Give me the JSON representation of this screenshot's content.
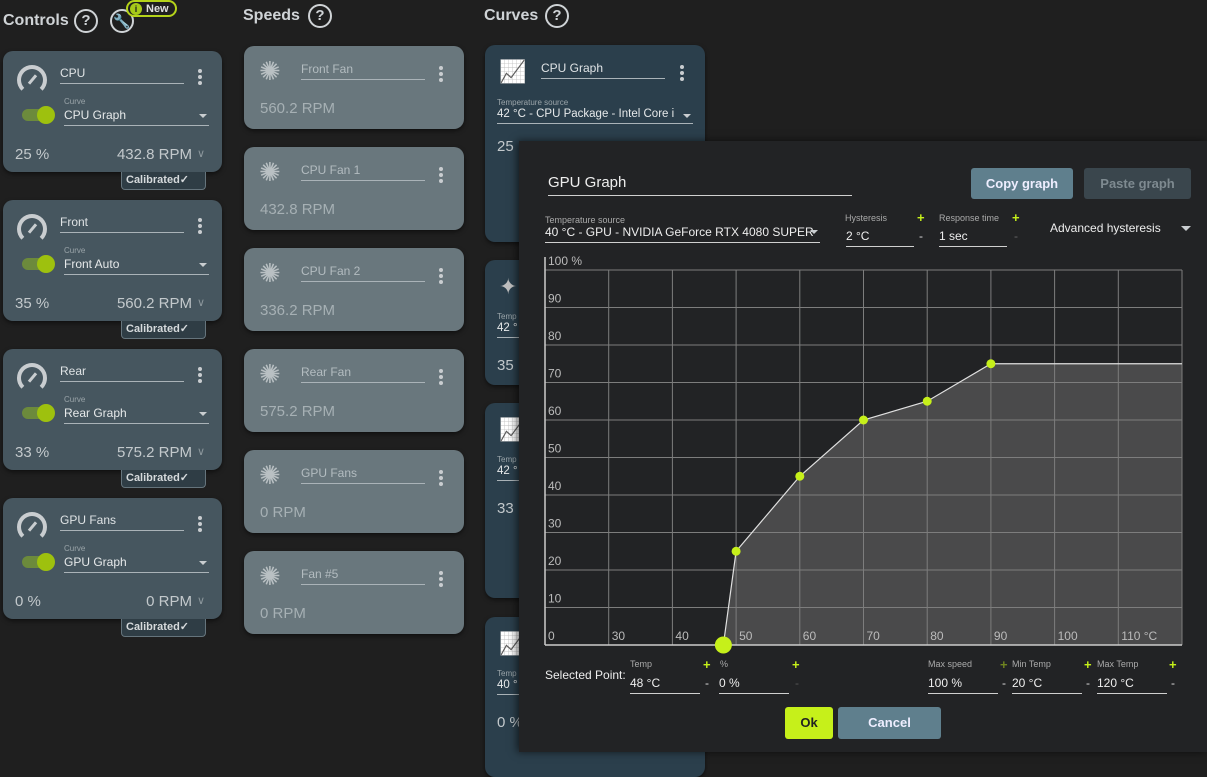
{
  "sections": {
    "controls": "Controls",
    "speeds": "Speeds",
    "curves": "Curves",
    "help": "?",
    "new_badge": "New",
    "new_icon": "i"
  },
  "colors": {
    "accent": "#c6f01a",
    "control_card": "#46565f",
    "speed_card": "#69777d",
    "curve_card": "#2b3f4c",
    "dialog": "#222325"
  },
  "controls": [
    {
      "name": "CPU",
      "curve_label": "Curve",
      "curve": "CPU Graph",
      "percent": "25 %",
      "rpm": "432.8 RPM",
      "badge": "Calibrated",
      "enabled": true
    },
    {
      "name": "Front",
      "curve_label": "Curve",
      "curve": "Front Auto",
      "percent": "35 %",
      "rpm": "560.2 RPM",
      "badge": "Calibrated",
      "enabled": true
    },
    {
      "name": "Rear",
      "curve_label": "Curve",
      "curve": "Rear Graph",
      "percent": "33 %",
      "rpm": "575.2 RPM",
      "badge": "Calibrated",
      "enabled": true
    },
    {
      "name": "GPU Fans",
      "curve_label": "Curve",
      "curve": "GPU Graph",
      "percent": "0 %",
      "rpm": "0 RPM",
      "badge": "Calibrated",
      "enabled": true
    }
  ],
  "speeds": [
    {
      "name": "Front Fan",
      "rpm": "560.2 RPM"
    },
    {
      "name": "CPU Fan 1",
      "rpm": "432.8 RPM"
    },
    {
      "name": "CPU Fan 2",
      "rpm": "336.2 RPM"
    },
    {
      "name": "Rear Fan",
      "rpm": "575.2 RPM"
    },
    {
      "name": "GPU Fans",
      "rpm": "0 RPM"
    },
    {
      "name": "Fan #5",
      "rpm": "0 RPM"
    }
  ],
  "curves": [
    {
      "icon": "graph-icon",
      "name": "CPU Graph",
      "source_label": "Temperature source",
      "source": "42 °C - CPU Package - Intel Core i",
      "value": "25"
    },
    {
      "icon": "sparkle-icon",
      "source_label": "Temp",
      "source": "42 °",
      "value": "35"
    },
    {
      "icon": "graph-icon",
      "source_label": "Temp",
      "source": "42 °",
      "value": "33"
    },
    {
      "icon": "graph-icon",
      "source_label": "Temp",
      "source": "40 °",
      "value": "0 %"
    }
  ],
  "dialog": {
    "name": "GPU Graph",
    "copy": "Copy graph",
    "paste": "Paste graph",
    "source_label": "Temperature source",
    "source": "40 °C - GPU - NVIDIA GeForce RTX 4080 SUPER",
    "hysteresis_label": "Hysteresis",
    "hysteresis": "2 °C",
    "response_label": "Response time",
    "response": "1 sec",
    "advanced": "Advanced hysteresis",
    "selected_label": "Selected Point:",
    "temp_label": "Temp",
    "temp": "48 °C",
    "pct_label": "%",
    "pct": "0 %",
    "maxspeed_label": "Max speed",
    "maxspeed": "100 %",
    "mintemp_label": "Min Temp",
    "mintemp": "20 °C",
    "maxtemp_label": "Max Temp",
    "maxtemp": "120 °C",
    "plus": "+",
    "minus": "-",
    "ok": "Ok",
    "cancel": "Cancel"
  },
  "chart_data": {
    "type": "line",
    "x": [
      48,
      50,
      60,
      70,
      80,
      90,
      120
    ],
    "y": [
      0,
      25,
      45,
      60,
      65,
      75,
      75
    ],
    "xlim": [
      20,
      120
    ],
    "ylim": [
      0,
      100
    ],
    "x_ticks": [
      20,
      30,
      40,
      50,
      60,
      70,
      80,
      90,
      100,
      110
    ],
    "x_tick_labels": [
      "",
      "30",
      "40",
      "50",
      "60",
      "70",
      "80",
      "90",
      "100",
      "110 °C"
    ],
    "y_ticks": [
      0,
      10,
      20,
      30,
      40,
      50,
      60,
      70,
      80,
      90,
      100
    ],
    "y_tick_labels": [
      "0",
      "10",
      "20",
      "30",
      "40",
      "50",
      "60",
      "70",
      "80",
      "90",
      "100 %"
    ],
    "selected_index": 0,
    "grid": true
  }
}
